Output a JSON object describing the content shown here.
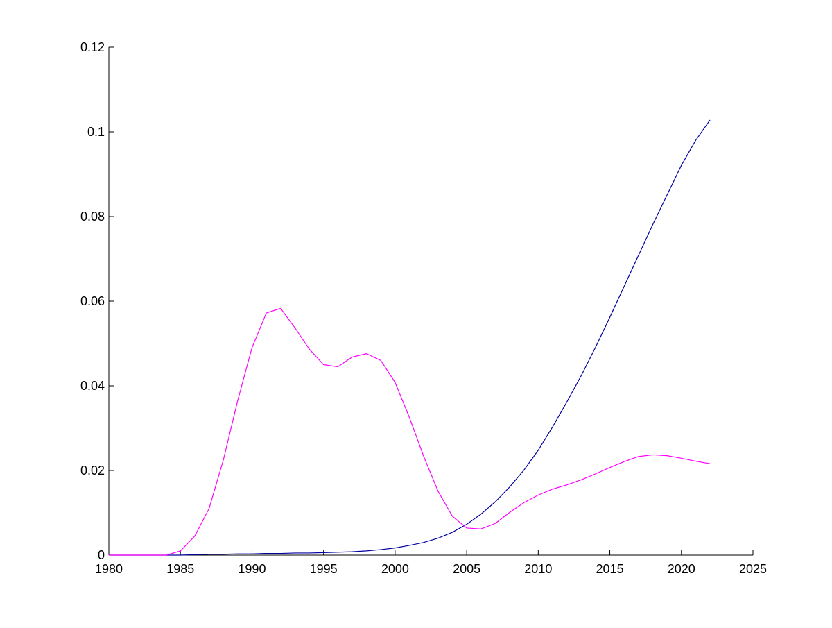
{
  "chart_data": {
    "type": "line",
    "title": "",
    "xlabel": "",
    "ylabel": "",
    "xlim": [
      1980,
      2025
    ],
    "ylim": [
      0,
      0.12
    ],
    "x_ticks": [
      1980,
      1985,
      1990,
      1995,
      2000,
      2005,
      2010,
      2015,
      2020,
      2025
    ],
    "x_tick_labels": [
      "1980",
      "1985",
      "1990",
      "1995",
      "2000",
      "2005",
      "2010",
      "2015",
      "2020",
      "2025"
    ],
    "y_ticks": [
      0,
      0.02,
      0.04,
      0.06,
      0.08,
      0.1,
      0.12
    ],
    "y_tick_labels": [
      "0",
      "0.02",
      "0.04",
      "0.06",
      "0.08",
      "0.1",
      "0.12"
    ],
    "grid": false,
    "legend": "none",
    "series": [
      {
        "color": "#0000a0",
        "x": [
          1980,
          1981,
          1982,
          1983,
          1984,
          1985,
          1986,
          1987,
          1988,
          1989,
          1990,
          1991,
          1992,
          1993,
          1994,
          1995,
          1996,
          1997,
          1998,
          1999,
          2000,
          2001,
          2002,
          2003,
          2004,
          2005,
          2006,
          2007,
          2008,
          2009,
          2010,
          2011,
          2012,
          2013,
          2014,
          2015,
          2016,
          2017,
          2018,
          2019,
          2020,
          2021,
          2022
        ],
        "y": [
          0,
          0,
          0,
          0,
          0,
          0,
          0.0001,
          0.0002,
          0.0002,
          0.0003,
          0.0003,
          0.0004,
          0.0004,
          0.0005,
          0.0005,
          0.0006,
          0.0007,
          0.0008,
          0.001,
          0.0013,
          0.0017,
          0.0023,
          0.003,
          0.004,
          0.0054,
          0.0073,
          0.0097,
          0.0126,
          0.0161,
          0.0201,
          0.0248,
          0.0303,
          0.0362,
          0.0424,
          0.0491,
          0.0562,
          0.0635,
          0.0708,
          0.0781,
          0.0851,
          0.0921,
          0.098,
          0.1028
        ]
      },
      {
        "color": "#ff00ff",
        "x": [
          1980,
          1981,
          1982,
          1983,
          1984,
          1985,
          1986,
          1987,
          1988,
          1989,
          1990,
          1991,
          1992,
          1993,
          1994,
          1995,
          1996,
          1997,
          1998,
          1999,
          2000,
          2001,
          2002,
          2003,
          2004,
          2005,
          2006,
          2007,
          2008,
          2009,
          2010,
          2011,
          2012,
          2013,
          2014,
          2015,
          2016,
          2017,
          2018,
          2019,
          2020,
          2021,
          2022
        ],
        "y": [
          0,
          0,
          0,
          0,
          0,
          0.001,
          0.0045,
          0.011,
          0.0225,
          0.0365,
          0.049,
          0.0572,
          0.0583,
          0.0537,
          0.0487,
          0.045,
          0.0445,
          0.0468,
          0.0476,
          0.046,
          0.0408,
          0.0325,
          0.0233,
          0.0151,
          0.0092,
          0.0064,
          0.0062,
          0.0075,
          0.0101,
          0.0124,
          0.0142,
          0.0156,
          0.0166,
          0.0178,
          0.0192,
          0.0207,
          0.0221,
          0.0233,
          0.0237,
          0.0235,
          0.0229,
          0.0222,
          0.0216
        ]
      }
    ]
  }
}
